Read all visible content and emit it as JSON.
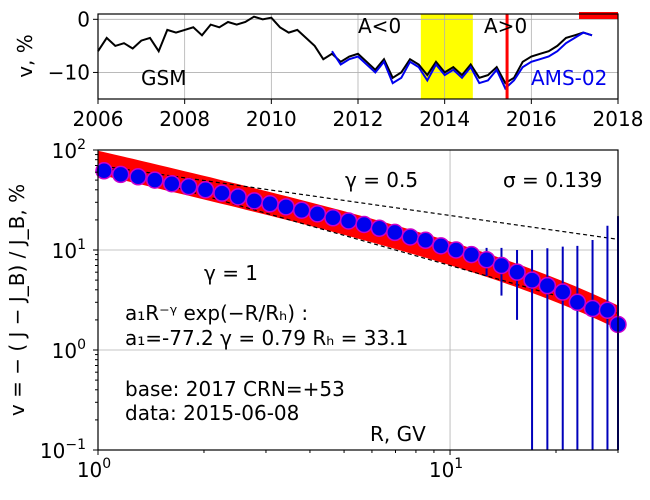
{
  "chart_data": [
    {
      "type": "line",
      "ylabel": "v, %",
      "xlim": [
        2006,
        2018
      ],
      "ylim": [
        -15,
        1
      ],
      "x_ticks": [
        "2006",
        "2008",
        "2010",
        "2012",
        "2014",
        "2016",
        "2018"
      ],
      "y_ticks": [
        "0",
        "−10"
      ],
      "grid": true,
      "annotations": {
        "gsm": "GSM",
        "ams": "AMS-02",
        "aneg": "A<0",
        "apos": "A>0"
      },
      "colors": {
        "gsm": "#000000",
        "ams": "#0000ee",
        "band": "#ffff00",
        "marker": "#ff0000"
      },
      "yellow_band": [
        2013.45,
        2014.65
      ],
      "red_line_x": 2015.44,
      "red_bar": [
        2017.1,
        2018.0
      ],
      "series": [
        {
          "name": "GSM",
          "x": [
            2006.0,
            2006.2,
            2006.4,
            2006.6,
            2006.8,
            2007.0,
            2007.2,
            2007.4,
            2007.6,
            2007.8,
            2008.0,
            2008.2,
            2008.4,
            2008.6,
            2008.8,
            2009.0,
            2009.2,
            2009.4,
            2009.6,
            2009.8,
            2010.0,
            2010.2,
            2010.4,
            2010.6,
            2010.8,
            2011.0,
            2011.2,
            2011.4,
            2011.6,
            2011.8,
            2012.0,
            2012.2,
            2012.4,
            2012.6,
            2012.8,
            2013.0,
            2013.2,
            2013.4,
            2013.6,
            2013.8,
            2014.0,
            2014.2,
            2014.4,
            2014.6,
            2014.8,
            2015.0,
            2015.2,
            2015.4,
            2015.6,
            2015.8,
            2016.0,
            2016.2,
            2016.4,
            2016.6,
            2016.8,
            2017.0,
            2017.2,
            2017.4
          ],
          "values": [
            -6,
            -3.5,
            -5,
            -4.5,
            -5.5,
            -4,
            -3.5,
            -6,
            -2,
            -2.5,
            -2,
            -1.5,
            -3,
            -1,
            -1.5,
            -0.5,
            -1,
            -0.5,
            0.5,
            0,
            0.3,
            -1.5,
            -2.5,
            -2,
            -3.5,
            -5,
            -7.5,
            -6.5,
            -8,
            -7,
            -6.5,
            -8,
            -9.5,
            -7.5,
            -11,
            -10,
            -7.5,
            -8.5,
            -10.5,
            -8,
            -10,
            -9,
            -10.5,
            -8.5,
            -11,
            -10.5,
            -9,
            -12,
            -11,
            -8,
            -7,
            -6.5,
            -6,
            -5,
            -3.5,
            -3,
            -2.5,
            -3
          ]
        },
        {
          "name": "AMS-02",
          "x": [
            2011.4,
            2011.6,
            2011.8,
            2012.0,
            2012.2,
            2012.4,
            2012.6,
            2012.8,
            2013.0,
            2013.2,
            2013.4,
            2013.6,
            2013.8,
            2014.0,
            2014.2,
            2014.4,
            2014.6,
            2014.8,
            2015.0,
            2015.2,
            2015.4,
            2015.6,
            2015.8,
            2016.0,
            2016.2,
            2016.4,
            2016.6,
            2016.8,
            2017.0,
            2017.2,
            2017.4
          ],
          "values": [
            -6,
            -8.5,
            -7.5,
            -7,
            -8.5,
            -10,
            -8,
            -12,
            -11,
            -8,
            -9,
            -11.5,
            -8.5,
            -10.5,
            -9.5,
            -11,
            -9,
            -12,
            -11.5,
            -9.5,
            -13,
            -11.5,
            -9,
            -8,
            -7.5,
            -7,
            -6,
            -4.5,
            -3.5,
            -2.5,
            -3
          ]
        }
      ]
    },
    {
      "type": "scatter",
      "ylabel": "v = − ( J − J_B) / J_B, %",
      "xlabel": "R, GV",
      "xscale": "log",
      "yscale": "log",
      "xlim": [
        1,
        30
      ],
      "ylim": [
        0.1,
        100
      ],
      "grid": true,
      "x_ticks": [
        {
          "value": 1,
          "base": "10",
          "exp": "0"
        },
        {
          "value": 10,
          "base": "10",
          "exp": "1"
        }
      ],
      "y_ticks": [
        {
          "value": 100,
          "base": "10",
          "exp": "2"
        },
        {
          "value": 10,
          "base": "10",
          "exp": "1"
        },
        {
          "value": 1,
          "base": "10",
          "exp": "0"
        },
        {
          "value": 0.1,
          "base": "10",
          "exp": "−1"
        }
      ],
      "texts": {
        "gamma05": "γ = 0.5",
        "sigma": "σ = 0.139",
        "gamma1": "γ = 1",
        "formula": "a₁R⁻ᵞ exp(−R/Rₕ) :",
        "params": "a₁=-77.2  γ = 0.79  Rₕ = 33.1",
        "base": "base: 2017   CRN=+53",
        "date": "data: 2015-06-08"
      },
      "colors": {
        "points": "#0000ee",
        "point_edge": "#cc00cc",
        "fit": "#ff0000",
        "errors": "#0000bb"
      },
      "fit": {
        "a1": 77.2,
        "gamma": 0.79,
        "RH": 33.1,
        "sigma": 0.139
      },
      "reference_lines": [
        {
          "gamma": 0.5,
          "at_R1": 70
        },
        {
          "gamma": 1,
          "at_R1": 70
        }
      ],
      "points": {
        "x": [
          1.04,
          1.16,
          1.3,
          1.45,
          1.62,
          1.81,
          2.02,
          2.25,
          2.5,
          2.78,
          3.08,
          3.42,
          3.79,
          4.2,
          4.65,
          5.15,
          5.7,
          6.3,
          6.97,
          7.71,
          8.52,
          9.42,
          10.4,
          11.5,
          12.7,
          14.0,
          15.5,
          17.1,
          18.9,
          20.9,
          23.0,
          25.4,
          28.0,
          30.0
        ],
        "y": [
          62,
          57,
          54,
          50,
          46,
          43,
          40,
          37,
          34,
          31,
          29,
          27,
          25,
          23,
          21,
          19.5,
          18,
          16.5,
          15,
          13.5,
          12.5,
          11,
          10,
          9,
          8,
          7,
          6,
          5,
          4.4,
          3.8,
          3.0,
          2.6,
          2.5,
          1.8
        ],
        "err": [
          0,
          0,
          0,
          0,
          0,
          0,
          0,
          0,
          0,
          0,
          0,
          0,
          0,
          0,
          0,
          0,
          0,
          0,
          0,
          0,
          0,
          0,
          0.6,
          1.5,
          2.5,
          3.5,
          4,
          5,
          6,
          7,
          8,
          10,
          15,
          20
        ]
      }
    }
  ]
}
